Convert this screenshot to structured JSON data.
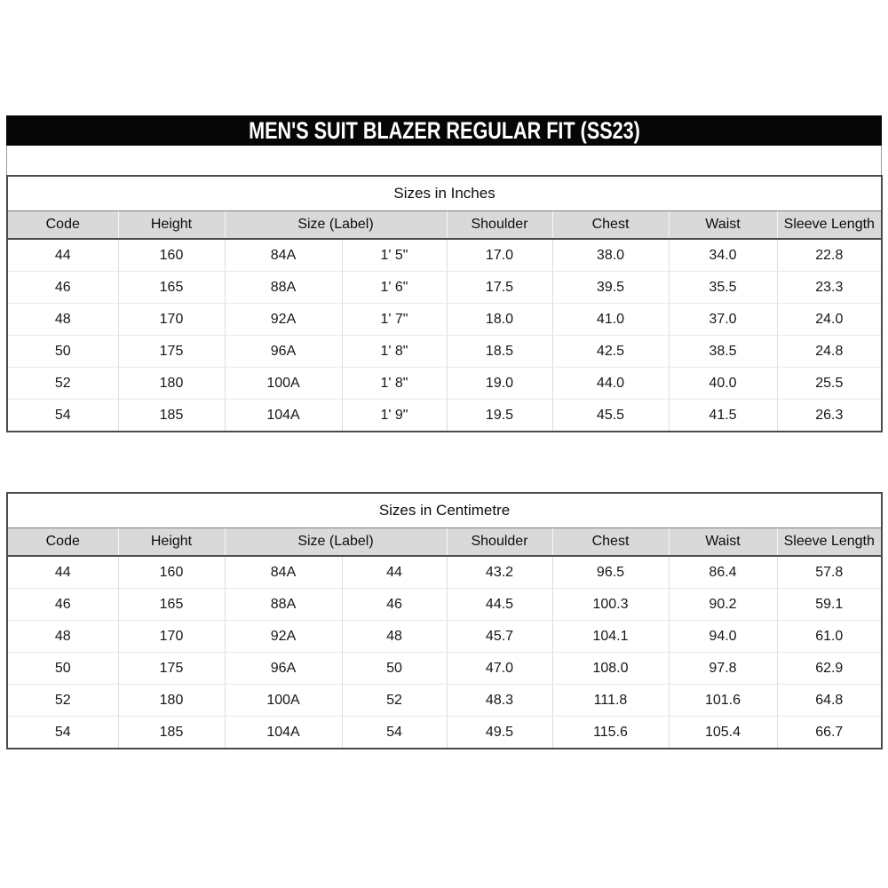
{
  "title_bar": {
    "text": "MEN'S SUIT BLAZER REGULAR FIT (SS23)"
  },
  "columns": [
    "Code",
    "Height",
    "Size (Label)",
    "Shoulder",
    "Chest",
    "Waist",
    "Sleeve Length"
  ],
  "tables": [
    {
      "caption": "Sizes in Inches",
      "rows": [
        [
          "44",
          "160",
          "84A",
          "1' 5\"",
          "17.0",
          "38.0",
          "34.0",
          "22.8"
        ],
        [
          "46",
          "165",
          "88A",
          "1' 6\"",
          "17.5",
          "39.5",
          "35.5",
          "23.3"
        ],
        [
          "48",
          "170",
          "92A",
          "1' 7\"",
          "18.0",
          "41.0",
          "37.0",
          "24.0"
        ],
        [
          "50",
          "175",
          "96A",
          "1' 8\"",
          "18.5",
          "42.5",
          "38.5",
          "24.8"
        ],
        [
          "52",
          "180",
          "100A",
          "1' 8\"",
          "19.0",
          "44.0",
          "40.0",
          "25.5"
        ],
        [
          "54",
          "185",
          "104A",
          "1' 9\"",
          "19.5",
          "45.5",
          "41.5",
          "26.3"
        ]
      ]
    },
    {
      "caption": "Sizes in Centimetre",
      "rows": [
        [
          "44",
          "160",
          "84A",
          "44",
          "43.2",
          "96.5",
          "86.4",
          "57.8"
        ],
        [
          "46",
          "165",
          "88A",
          "46",
          "44.5",
          "100.3",
          "90.2",
          "59.1"
        ],
        [
          "48",
          "170",
          "92A",
          "48",
          "45.7",
          "104.1",
          "94.0",
          "61.0"
        ],
        [
          "50",
          "175",
          "96A",
          "50",
          "47.0",
          "108.0",
          "97.8",
          "62.9"
        ],
        [
          "52",
          "180",
          "100A",
          "52",
          "48.3",
          "111.8",
          "101.6",
          "64.8"
        ],
        [
          "54",
          "185",
          "104A",
          "54",
          "49.5",
          "115.6",
          "105.4",
          "66.7"
        ]
      ]
    }
  ],
  "colors": {
    "title_bg": "#060606",
    "title_fg": "#ffffff",
    "header_fill": "#d9d9d9",
    "border_dark": "#4a4a4a"
  }
}
